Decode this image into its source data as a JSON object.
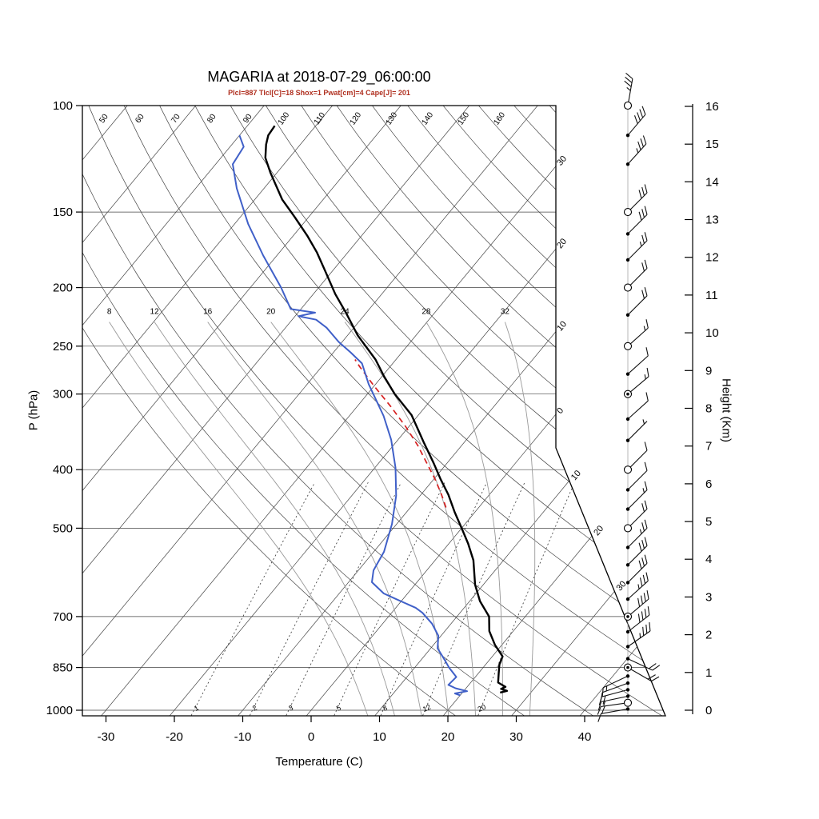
{
  "title": "MAGARIA at 2018-07-29_06:00:00",
  "subtitle": "Plcl=887 Tlcl[C]=18 Shox=1 Pwat[cm]=4 Cape[J]= 201",
  "axes": {
    "x_label": "Temperature (C)",
    "y_left_label": "P (hPa)",
    "y_right_label": "Height (Km)",
    "pressure_ticks": [
      100,
      150,
      200,
      250,
      300,
      400,
      500,
      700,
      850,
      1000
    ],
    "temperature_ticks": [
      -30,
      -20,
      -10,
      0,
      10,
      20,
      30,
      40
    ],
    "height_km_ticks": [
      0,
      1,
      2,
      3,
      4,
      5,
      6,
      7,
      8,
      9,
      10,
      11,
      12,
      13,
      14,
      15,
      16
    ]
  },
  "grid": {
    "isotherms_c": [
      -110,
      -100,
      -90,
      -80,
      -70,
      -60,
      -50,
      -40,
      -30,
      -20,
      -10,
      0,
      10,
      20,
      30,
      40
    ],
    "isotherm_edge_labels": [
      {
        "t": -30,
        "text": "30"
      },
      {
        "t": -20,
        "text": "20"
      },
      {
        "t": -10,
        "text": "10"
      },
      {
        "t": 0,
        "text": "0"
      },
      {
        "t": 10,
        "text": "10"
      },
      {
        "t": 20,
        "text": "20"
      },
      {
        "t": 30,
        "text": "30"
      }
    ],
    "dry_adiabats_c": [
      20,
      30,
      40,
      50,
      60,
      70,
      80,
      90,
      100,
      110,
      120,
      130,
      140,
      150,
      160,
      170,
      180
    ],
    "dry_adiabat_labels": [
      50,
      60,
      70,
      80,
      90,
      100,
      110,
      120,
      130,
      140,
      150,
      160
    ],
    "moist_adiabats_c": [
      8,
      12,
      16,
      20,
      24,
      28,
      32
    ],
    "mixing_ratio_g_kg": [
      1,
      2,
      3,
      5,
      8,
      12,
      20
    ]
  },
  "chart_data": {
    "type": "skewt-logp",
    "station": "MAGARIA",
    "datetime": "2018-07-29_06:00:00",
    "indices": {
      "Plcl_hPa": 887,
      "Tlcl_C": 18,
      "Shox": 1,
      "Pwat_cm": 4,
      "Cape_J": 201
    },
    "pressure_axis_range_hPa": [
      100,
      1000
    ],
    "temperature_axis_range_C": [
      -30,
      40
    ],
    "height_axis_range_km": [
      0,
      16
    ],
    "temperature_profile_p_t": [
      [
        935,
        25.5
      ],
      [
        929,
        26.3
      ],
      [
        922,
        25.2
      ],
      [
        915,
        25.6
      ],
      [
        900,
        24
      ],
      [
        870,
        23
      ],
      [
        840,
        22
      ],
      [
        815,
        21.5
      ],
      [
        780,
        19
      ],
      [
        740,
        16.5
      ],
      [
        700,
        14.7
      ],
      [
        660,
        11.5
      ],
      [
        620,
        8.8
      ],
      [
        565,
        5.6
      ],
      [
        530,
        2.8
      ],
      [
        500,
        0
      ],
      [
        470,
        -3
      ],
      [
        440,
        -6
      ],
      [
        415,
        -9
      ],
      [
        390,
        -12
      ],
      [
        360,
        -16
      ],
      [
        340,
        -18.8
      ],
      [
        325,
        -21
      ],
      [
        300,
        -26
      ],
      [
        280,
        -29.8
      ],
      [
        263,
        -33
      ],
      [
        240,
        -38.5
      ],
      [
        220,
        -43
      ],
      [
        205,
        -46.8
      ],
      [
        188,
        -51
      ],
      [
        175,
        -54.5
      ],
      [
        164,
        -58
      ],
      [
        153,
        -62
      ],
      [
        143,
        -66
      ],
      [
        135,
        -68.8
      ],
      [
        129,
        -71
      ],
      [
        122,
        -73.5
      ],
      [
        116,
        -75
      ],
      [
        112,
        -75.8
      ],
      [
        108,
        -76
      ]
    ],
    "dewpoint_profile_p_t": [
      [
        945,
        20
      ],
      [
        938,
        19
      ],
      [
        930,
        20.5
      ],
      [
        920,
        18.5
      ],
      [
        908,
        17
      ],
      [
        896,
        17.1
      ],
      [
        881,
        17.2
      ],
      [
        850,
        15
      ],
      [
        825,
        13.4
      ],
      [
        790,
        11
      ],
      [
        753,
        9.6
      ],
      [
        719,
        7.2
      ],
      [
        690,
        4.5
      ],
      [
        677,
        2.9
      ],
      [
        655,
        -1
      ],
      [
        641,
        -3.5
      ],
      [
        614,
        -6.6
      ],
      [
        587,
        -7.8
      ],
      [
        547,
        -8.5
      ],
      [
        492,
        -10.7
      ],
      [
        442,
        -13.5
      ],
      [
        397,
        -17
      ],
      [
        357,
        -21
      ],
      [
        326,
        -25
      ],
      [
        289,
        -31
      ],
      [
        267,
        -34.5
      ],
      [
        256,
        -37.5
      ],
      [
        246,
        -40.5
      ],
      [
        233,
        -44
      ],
      [
        226,
        -46.5
      ],
      [
        223,
        -49.5
      ],
      [
        220,
        -47.5
      ],
      [
        217,
        -51.5
      ],
      [
        200,
        -55.5
      ],
      [
        177,
        -62
      ],
      [
        157,
        -68
      ],
      [
        137,
        -74
      ],
      [
        125,
        -77.5
      ],
      [
        117,
        -78
      ],
      [
        112,
        -80
      ]
    ],
    "parcel_path_p_t": [
      [
        462,
        -4.8
      ],
      [
        440,
        -7
      ],
      [
        415,
        -9.8
      ],
      [
        390,
        -13
      ],
      [
        365,
        -16.4
      ],
      [
        340,
        -20.4
      ],
      [
        315,
        -25
      ],
      [
        290,
        -30.2
      ],
      [
        270,
        -34.5
      ],
      [
        263,
        -36
      ]
    ],
    "wind_barbs": [
      {
        "p": 100,
        "a": 80,
        "f": 3,
        "h": 1,
        "m": "o"
      },
      {
        "p": 112,
        "a": 50,
        "f": 4,
        "h": 0,
        "m": "d"
      },
      {
        "p": 125,
        "a": 48,
        "f": 3,
        "h": 1,
        "m": "d"
      },
      {
        "p": 150,
        "a": 45,
        "f": 3,
        "h": 0,
        "m": "o"
      },
      {
        "p": 163,
        "a": 45,
        "f": 3,
        "h": 0,
        "m": "d"
      },
      {
        "p": 180,
        "a": 45,
        "f": 2,
        "h": 1,
        "m": "d"
      },
      {
        "p": 200,
        "a": 45,
        "f": 2,
        "h": 0,
        "m": "o"
      },
      {
        "p": 222,
        "a": 45,
        "f": 2,
        "h": 0,
        "m": "d"
      },
      {
        "p": 250,
        "a": 42,
        "f": 1,
        "h": 1,
        "m": "o"
      },
      {
        "p": 278,
        "a": 42,
        "f": 1,
        "h": 0,
        "m": "d"
      },
      {
        "p": 300,
        "a": 40,
        "f": 1,
        "h": 1,
        "m": "od"
      },
      {
        "p": 330,
        "a": 42,
        "f": 1,
        "h": 0,
        "m": "d"
      },
      {
        "p": 358,
        "a": 45,
        "f": 0,
        "h": 1,
        "m": "d"
      },
      {
        "p": 400,
        "a": 45,
        "f": 1,
        "h": 0,
        "m": "o"
      },
      {
        "p": 432,
        "a": 45,
        "f": 1,
        "h": 0,
        "m": "d"
      },
      {
        "p": 465,
        "a": 45,
        "f": 1,
        "h": 1,
        "m": "d"
      },
      {
        "p": 500,
        "a": 45,
        "f": 2,
        "h": 0,
        "m": "o"
      },
      {
        "p": 538,
        "a": 45,
        "f": 2,
        "h": 1,
        "m": "d"
      },
      {
        "p": 575,
        "a": 45,
        "f": 3,
        "h": 0,
        "m": "d"
      },
      {
        "p": 615,
        "a": 45,
        "f": 3,
        "h": 0,
        "m": "d"
      },
      {
        "p": 655,
        "a": 42,
        "f": 3,
        "h": 1,
        "m": "d"
      },
      {
        "p": 700,
        "a": 40,
        "f": 4,
        "h": 0,
        "m": "od"
      },
      {
        "p": 742,
        "a": 38,
        "f": 4,
        "h": 0,
        "m": "d"
      },
      {
        "p": 785,
        "a": 35,
        "f": 3,
        "h": 1,
        "m": "d"
      },
      {
        "p": 822,
        "a": -25,
        "f": 2,
        "h": 0,
        "m": "d"
      },
      {
        "p": 850,
        "a": -30,
        "f": 2,
        "h": 0,
        "m": "od"
      },
      {
        "p": 878,
        "a": 205,
        "f": 1,
        "h": 1,
        "m": "d"
      },
      {
        "p": 902,
        "a": 200,
        "f": 1,
        "h": 0,
        "m": "d"
      },
      {
        "p": 925,
        "a": 195,
        "f": 2,
        "h": 0,
        "m": "d"
      },
      {
        "p": 948,
        "a": 192,
        "f": 1,
        "h": 1,
        "m": "d"
      },
      {
        "p": 972,
        "a": 188,
        "f": 2,
        "h": 0,
        "m": "o"
      },
      {
        "p": 995,
        "a": 190,
        "f": 1,
        "h": 0,
        "m": "d"
      }
    ]
  },
  "colors": {
    "temperature": "#000000",
    "dewpoint": "#4060c8",
    "parcel": "#d62020",
    "subtitle": "#b03020",
    "moist_adiabat": "#999999",
    "grid": "#444444"
  }
}
